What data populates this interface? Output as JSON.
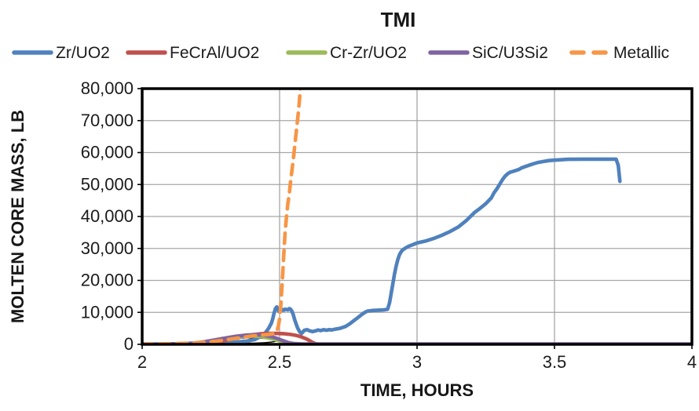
{
  "title": "TMI",
  "x_axis_title": "TIME,  HOURS",
  "y_axis_title": "MOLTEN CORE MASS, LB",
  "chart_data": {
    "type": "line",
    "title": "TMI",
    "xlabel": "TIME,  HOURS",
    "ylabel": "MOLTEN CORE MASS, LB",
    "xlim": [
      2,
      4
    ],
    "ylim": [
      0,
      80000
    ],
    "grid": true,
    "legend_position": "top",
    "x_ticks": [
      {
        "value": 2,
        "label": "2"
      },
      {
        "value": 2.5,
        "label": "2.5"
      },
      {
        "value": 3,
        "label": "3"
      },
      {
        "value": 3.5,
        "label": "3.5"
      },
      {
        "value": 4,
        "label": "4"
      }
    ],
    "y_ticks": [
      {
        "value": 0,
        "label": "0"
      },
      {
        "value": 10000,
        "label": "10,000"
      },
      {
        "value": 20000,
        "label": "20,000"
      },
      {
        "value": 30000,
        "label": "30,000"
      },
      {
        "value": 40000,
        "label": "40,000"
      },
      {
        "value": 50000,
        "label": "50,000"
      },
      {
        "value": 60000,
        "label": "60,000"
      },
      {
        "value": 70000,
        "label": "70,000"
      },
      {
        "value": 80000,
        "label": "80,000"
      }
    ],
    "series": [
      {
        "name": "Zr/UO2",
        "color": "#4F81BD",
        "style": "solid",
        "width": 4.6,
        "points": [
          [
            2.02,
            60
          ],
          [
            2.1,
            130
          ],
          [
            2.2,
            260
          ],
          [
            2.28,
            420
          ],
          [
            2.34,
            700
          ],
          [
            2.38,
            1000
          ],
          [
            2.41,
            1500
          ],
          [
            2.43,
            2400
          ],
          [
            2.45,
            3800
          ],
          [
            2.46,
            5000
          ],
          [
            2.47,
            6600
          ],
          [
            2.475,
            8000
          ],
          [
            2.48,
            9800
          ],
          [
            2.485,
            11200
          ],
          [
            2.49,
            11700
          ],
          [
            2.495,
            10600
          ],
          [
            2.5,
            10100
          ],
          [
            2.505,
            10500
          ],
          [
            2.51,
            10900
          ],
          [
            2.515,
            10700
          ],
          [
            2.52,
            11000
          ],
          [
            2.53,
            10800
          ],
          [
            2.535,
            11200
          ],
          [
            2.54,
            11000
          ],
          [
            2.545,
            10300
          ],
          [
            2.55,
            9200
          ],
          [
            2.555,
            7600
          ],
          [
            2.56,
            6400
          ],
          [
            2.565,
            5200
          ],
          [
            2.57,
            4400
          ],
          [
            2.575,
            3700
          ],
          [
            2.58,
            3400
          ],
          [
            2.585,
            3900
          ],
          [
            2.59,
            4400
          ],
          [
            2.6,
            4600
          ],
          [
            2.61,
            4200
          ],
          [
            2.62,
            4000
          ],
          [
            2.63,
            4200
          ],
          [
            2.64,
            4500
          ],
          [
            2.65,
            4300
          ],
          [
            2.66,
            4600
          ],
          [
            2.67,
            4400
          ],
          [
            2.68,
            4600
          ],
          [
            2.69,
            4500
          ],
          [
            2.7,
            4700
          ],
          [
            2.72,
            5000
          ],
          [
            2.74,
            5600
          ],
          [
            2.755,
            6400
          ],
          [
            2.77,
            7400
          ],
          [
            2.785,
            8400
          ],
          [
            2.8,
            9400
          ],
          [
            2.81,
            10000
          ],
          [
            2.82,
            10400
          ],
          [
            2.84,
            10600
          ],
          [
            2.86,
            10700
          ],
          [
            2.88,
            10800
          ],
          [
            2.893,
            11000
          ],
          [
            2.9,
            13000
          ],
          [
            2.906,
            16000
          ],
          [
            2.912,
            19000
          ],
          [
            2.918,
            22000
          ],
          [
            2.924,
            24500
          ],
          [
            2.93,
            26500
          ],
          [
            2.937,
            28200
          ],
          [
            2.945,
            29300
          ],
          [
            2.955,
            30000
          ],
          [
            2.97,
            30700
          ],
          [
            2.985,
            31200
          ],
          [
            3.0,
            31700
          ],
          [
            3.03,
            32300
          ],
          [
            3.06,
            33100
          ],
          [
            3.09,
            34100
          ],
          [
            3.12,
            35300
          ],
          [
            3.15,
            36700
          ],
          [
            3.18,
            38800
          ],
          [
            3.21,
            41300
          ],
          [
            3.23,
            42600
          ],
          [
            3.25,
            44000
          ],
          [
            3.27,
            45800
          ],
          [
            3.28,
            47400
          ],
          [
            3.29,
            48600
          ],
          [
            3.3,
            50000
          ],
          [
            3.31,
            51400
          ],
          [
            3.32,
            52600
          ],
          [
            3.33,
            53400
          ],
          [
            3.34,
            53900
          ],
          [
            3.36,
            54400
          ],
          [
            3.37,
            54700
          ],
          [
            3.38,
            55200
          ],
          [
            3.4,
            55800
          ],
          [
            3.42,
            56400
          ],
          [
            3.44,
            56900
          ],
          [
            3.46,
            57200
          ],
          [
            3.48,
            57500
          ],
          [
            3.51,
            57700
          ],
          [
            3.55,
            57900
          ],
          [
            3.6,
            57950
          ],
          [
            3.65,
            57950
          ],
          [
            3.7,
            57950
          ],
          [
            3.724,
            57950
          ],
          [
            3.732,
            56000
          ],
          [
            3.738,
            51000
          ]
        ]
      },
      {
        "name": "FeCrAl/UO2",
        "color": "#C0504D",
        "style": "solid",
        "width": 4.6,
        "points": [
          [
            2.2,
            60
          ],
          [
            2.24,
            260
          ],
          [
            2.28,
            800
          ],
          [
            2.31,
            1400
          ],
          [
            2.34,
            2000
          ],
          [
            2.37,
            2600
          ],
          [
            2.4,
            3000
          ],
          [
            2.43,
            3300
          ],
          [
            2.46,
            3400
          ],
          [
            2.49,
            3400
          ],
          [
            2.52,
            3300
          ],
          [
            2.54,
            3100
          ],
          [
            2.56,
            2800
          ],
          [
            2.58,
            2300
          ],
          [
            2.6,
            1600
          ],
          [
            2.61,
            1100
          ],
          [
            2.62,
            600
          ],
          [
            2.63,
            220
          ],
          [
            2.64,
            60
          ]
        ]
      },
      {
        "name": "Cr-Zr/UO2",
        "color": "#9BBB59",
        "style": "solid",
        "width": 4.6,
        "points": [
          [
            2.17,
            60
          ],
          [
            2.2,
            300
          ],
          [
            2.23,
            800
          ],
          [
            2.26,
            1300
          ],
          [
            2.29,
            1800
          ],
          [
            2.32,
            2200
          ],
          [
            2.35,
            2500
          ],
          [
            2.38,
            2600
          ],
          [
            2.41,
            2600
          ],
          [
            2.44,
            2300
          ],
          [
            2.47,
            1800
          ],
          [
            2.49,
            1300
          ],
          [
            2.51,
            800
          ],
          [
            2.53,
            300
          ],
          [
            2.55,
            60
          ]
        ]
      },
      {
        "name": "SiC/U3Si2",
        "color": "#8064A2",
        "style": "solid",
        "width": 4.6,
        "points": [
          [
            2.0,
            70
          ],
          [
            2.05,
            70
          ],
          [
            2.1,
            110
          ],
          [
            2.15,
            210
          ],
          [
            2.18,
            350
          ],
          [
            2.22,
            700
          ],
          [
            2.26,
            1300
          ],
          [
            2.3,
            1900
          ],
          [
            2.34,
            2500
          ],
          [
            2.38,
            2900
          ],
          [
            2.41,
            3000
          ],
          [
            2.44,
            2900
          ],
          [
            2.47,
            2400
          ],
          [
            2.49,
            1900
          ],
          [
            2.51,
            1200
          ],
          [
            2.53,
            600
          ],
          [
            2.55,
            260
          ],
          [
            2.58,
            130
          ],
          [
            2.65,
            90
          ],
          [
            2.8,
            90
          ],
          [
            3.0,
            90
          ],
          [
            3.25,
            90
          ],
          [
            3.5,
            90
          ],
          [
            3.75,
            90
          ],
          [
            4.0,
            90
          ]
        ]
      },
      {
        "name": "Metallic",
        "color": "#F79646",
        "style": "dashed",
        "width": 4.6,
        "dash": "13 9",
        "points": [
          [
            2.0,
            110
          ],
          [
            2.05,
            130
          ],
          [
            2.1,
            190
          ],
          [
            2.15,
            290
          ],
          [
            2.2,
            460
          ],
          [
            2.24,
            720
          ],
          [
            2.28,
            1100
          ],
          [
            2.32,
            1600
          ],
          [
            2.36,
            2100
          ],
          [
            2.4,
            2600
          ],
          [
            2.43,
            2900
          ],
          [
            2.46,
            3100
          ],
          [
            2.48,
            3400
          ],
          [
            2.49,
            4100
          ],
          [
            2.495,
            5600
          ],
          [
            2.5,
            8000
          ],
          [
            2.505,
            13000
          ],
          [
            2.51,
            20000
          ],
          [
            2.515,
            28000
          ],
          [
            2.52,
            35000
          ],
          [
            2.525,
            40000
          ],
          [
            2.53,
            44000
          ],
          [
            2.535,
            47000
          ],
          [
            2.54,
            51000
          ],
          [
            2.55,
            58000
          ],
          [
            2.56,
            66000
          ],
          [
            2.57,
            74000
          ],
          [
            2.577,
            81500
          ]
        ]
      }
    ],
    "annotation_ellipse": {
      "x_center": 2.38,
      "x_radius": 0.11,
      "y_center": 1200,
      "y_radius": 850
    }
  }
}
